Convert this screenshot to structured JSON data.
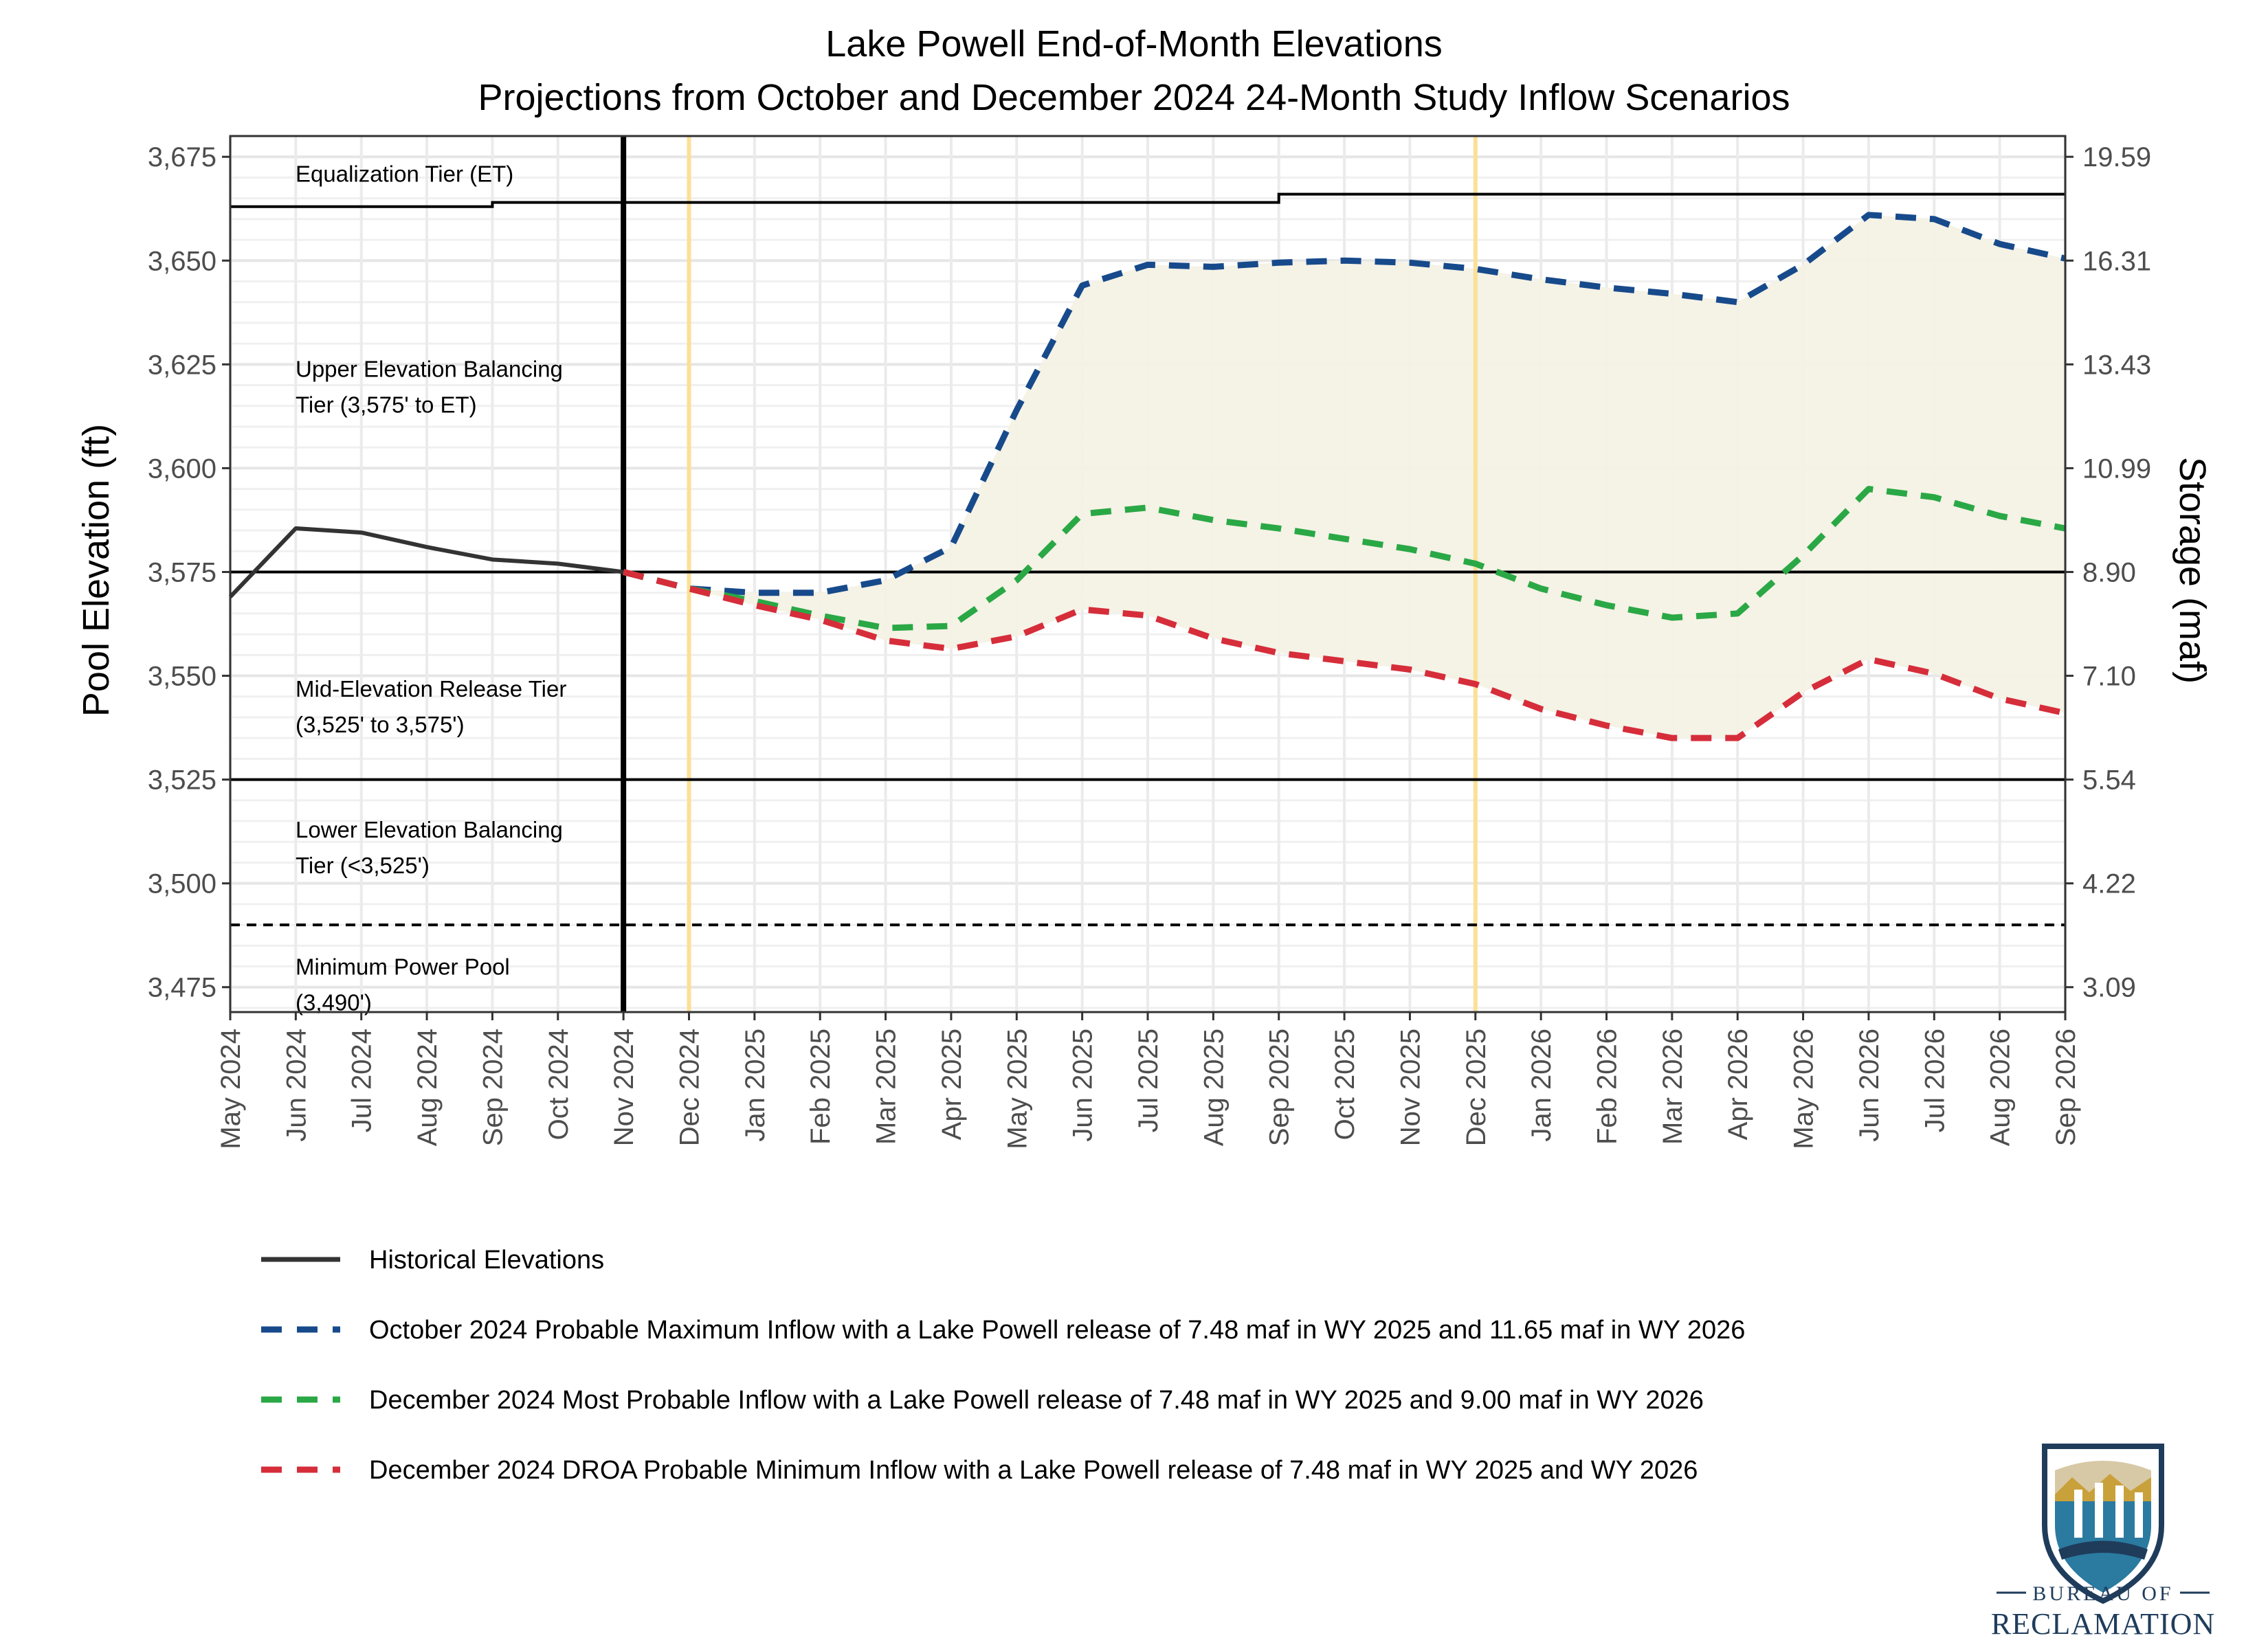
{
  "chart_data": {
    "type": "line",
    "title": "Lake Powell End-of-Month Elevations",
    "subtitle": "Projections from October and December 2024 24-Month Study Inflow Scenarios",
    "ylabel": "Pool Elevation (ft)",
    "y2label": "Storage (maf)",
    "ylim": [
      3469,
      3680
    ],
    "y_ticks": [
      3475,
      3500,
      3525,
      3550,
      3575,
      3600,
      3625,
      3650,
      3675
    ],
    "y_tick_labels": [
      "3,475",
      "3,500",
      "3,525",
      "3,550",
      "3,575",
      "3,600",
      "3,625",
      "3,650",
      "3,675"
    ],
    "y2_tick_labels": [
      "3.09",
      "4.22",
      "5.54",
      "7.10",
      "8.90",
      "10.99",
      "13.43",
      "16.31",
      "19.59"
    ],
    "x_labels": [
      "May 2024",
      "Jun 2024",
      "Jul 2024",
      "Aug 2024",
      "Sep 2024",
      "Oct 2024",
      "Nov 2024",
      "Dec 2024",
      "Jan 2025",
      "Feb 2025",
      "Mar 2025",
      "Apr 2025",
      "May 2025",
      "Jun 2025",
      "Jul 2025",
      "Aug 2025",
      "Sep 2025",
      "Oct 2025",
      "Nov 2025",
      "Dec 2025",
      "Jan 2026",
      "Feb 2026",
      "Mar 2026",
      "Apr 2026",
      "May 2026",
      "Jun 2026",
      "Jul 2026",
      "Aug 2026",
      "Sep 2026"
    ],
    "grid": true,
    "series": [
      {
        "name": "Historical Elevations",
        "color": "#333333",
        "dash": "solid",
        "x": [
          "May 2024",
          "Jun 2024",
          "Jul 2024",
          "Aug 2024",
          "Sep 2024",
          "Oct 2024",
          "Nov 2024"
        ],
        "values": [
          3569,
          3585.5,
          3584.5,
          3581,
          3578,
          3577,
          3575
        ]
      },
      {
        "name": "October 2024 Probable Maximum Inflow with a Lake Powell release of 7.48 maf in WY 2025 and 11.65 maf in WY 2026",
        "color": "#174a8b",
        "dash": "dashed",
        "x": [
          "Nov 2024",
          "Dec 2024",
          "Jan 2025",
          "Feb 2025",
          "Mar 2025",
          "Apr 2025",
          "May 2025",
          "Jun 2025",
          "Jul 2025",
          "Aug 2025",
          "Sep 2025",
          "Oct 2025",
          "Nov 2025",
          "Dec 2025",
          "Jan 2026",
          "Feb 2026",
          "Mar 2026",
          "Apr 2026",
          "May 2026",
          "Jun 2026",
          "Jul 2026",
          "Aug 2026",
          "Sep 2026"
        ],
        "values": [
          3575,
          3571,
          3570,
          3570,
          3573,
          3581,
          3614,
          3644,
          3649,
          3648.5,
          3649.5,
          3650,
          3649.5,
          3648,
          3645.5,
          3643.5,
          3642,
          3640,
          3649,
          3661,
          3660,
          3654,
          3650.5
        ]
      },
      {
        "name": "December 2024 Most Probable Inflow with a Lake Powell release of 7.48 maf in WY 2025 and 9.00 maf in WY 2026",
        "color": "#2aa845",
        "dash": "dashed",
        "x": [
          "Nov 2024",
          "Dec 2024",
          "Jan 2025",
          "Feb 2025",
          "Mar 2025",
          "Apr 2025",
          "May 2025",
          "Jun 2025",
          "Jul 2025",
          "Aug 2025",
          "Sep 2025",
          "Oct 2025",
          "Nov 2025",
          "Dec 2025",
          "Jan 2026",
          "Feb 2026",
          "Mar 2026",
          "Apr 2026",
          "May 2026",
          "Jun 2026",
          "Jul 2026",
          "Aug 2026",
          "Sep 2026"
        ],
        "values": [
          3575,
          3571,
          3568,
          3564.5,
          3561.5,
          3562,
          3573,
          3589,
          3590.5,
          3587.5,
          3585.5,
          3583,
          3580.5,
          3577,
          3571,
          3567,
          3564,
          3565,
          3579,
          3595,
          3593,
          3588.5,
          3585.5
        ]
      },
      {
        "name": "December 2024 DROA Probable Minimum Inflow with a Lake Powell release of 7.48 maf in WY 2025 and WY 2026",
        "color": "#d62d3a",
        "dash": "dashed",
        "x": [
          "Nov 2024",
          "Dec 2024",
          "Jan 2025",
          "Feb 2025",
          "Mar 2025",
          "Apr 2025",
          "May 2025",
          "Jun 2025",
          "Jul 2025",
          "Aug 2025",
          "Sep 2025",
          "Oct 2025",
          "Nov 2025",
          "Dec 2025",
          "Jan 2026",
          "Feb 2026",
          "Mar 2026",
          "Apr 2026",
          "May 2026",
          "Jun 2026",
          "Jul 2026",
          "Aug 2026",
          "Sep 2026"
        ],
        "values": [
          3575,
          3571,
          3567,
          3563.5,
          3558.5,
          3556.5,
          3559.5,
          3566,
          3564.5,
          3559,
          3555.5,
          3553.5,
          3551.5,
          3548,
          3542,
          3538,
          3535,
          3535,
          3546,
          3554,
          3550.5,
          3544.5,
          3541
        ]
      }
    ],
    "reference_lines": [
      {
        "name": "tier-3575",
        "y": 3575,
        "style": "solid"
      },
      {
        "name": "tier-3525",
        "y": 3525,
        "style": "solid"
      },
      {
        "name": "min-power-pool",
        "y": 3490,
        "style": "dashed"
      }
    ],
    "equalization_tier_steps": {
      "x": [
        "May 2024",
        "Sep 2024",
        "Sep 2024",
        "Sep 2025",
        "Sep 2025",
        "Sep 2026"
      ],
      "values": [
        3663,
        3663,
        3664,
        3664,
        3666,
        3666
      ]
    },
    "current_month_line": "Nov 2024",
    "highlight_months": [
      "Dec 2024",
      "Dec 2025"
    ],
    "shaded_range": "between maximum and minimum projections",
    "tier_labels": [
      {
        "lines": [
          "Equalization Tier (ET)"
        ],
        "y": 3669
      },
      {
        "lines": [
          "Upper Elevation Balancing",
          "Tier (3,575' to ET)"
        ],
        "y": 3622
      },
      {
        "lines": [
          "Mid-Elevation Release Tier",
          "(3,525' to 3,575')"
        ],
        "y": 3545
      },
      {
        "lines": [
          "Lower Elevation Balancing",
          "Tier (<3,525')"
        ],
        "y": 3511
      },
      {
        "lines": [
          "Minimum Power Pool",
          "(3,490')"
        ],
        "y": 3478
      }
    ],
    "legend_placement": "bottom"
  },
  "logo": {
    "line1": "BUREAU OF",
    "line2": "RECLAMATION",
    "colors": {
      "navy": "#1f3c5b",
      "gold": "#c9a13b",
      "teal": "#2b7aa0",
      "tan": "#d8c9a6"
    }
  }
}
